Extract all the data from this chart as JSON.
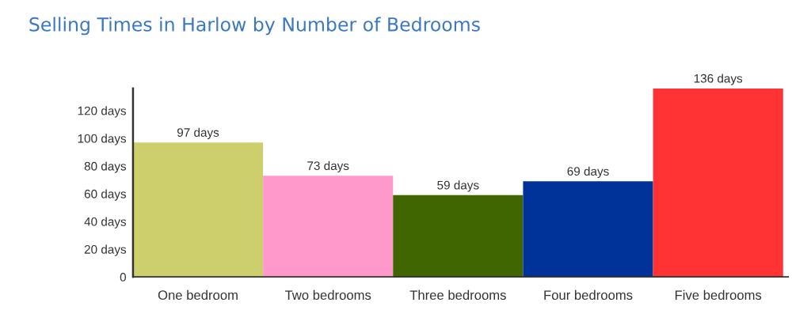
{
  "chart_data": {
    "type": "bar",
    "title": "Selling Times in Harlow by Number of Bedrooms",
    "categories": [
      "One bedroom",
      "Two bedrooms",
      "Three bedrooms",
      "Four bedrooms",
      "Five bedrooms"
    ],
    "values": [
      97,
      73,
      59,
      69,
      136
    ],
    "colors": [
      "#cccf6c",
      "#ff99cc",
      "#3f6600",
      "#003399",
      "#ff3333"
    ],
    "value_labels": [
      "97 days",
      "73 days",
      "59 days",
      "69 days",
      "136 days"
    ],
    "ylim": [
      0,
      136
    ],
    "yticks": [
      0,
      {
        "value": 20,
        "label": "20 days"
      },
      {
        "value": 40,
        "label": "40 days"
      },
      {
        "value": 60,
        "label": "60 days"
      },
      {
        "value": 80,
        "label": "80 days"
      },
      {
        "value": 100,
        "label": "100 days"
      },
      {
        "value": 120,
        "label": "120 days"
      }
    ],
    "grid": false,
    "legend": false
  }
}
